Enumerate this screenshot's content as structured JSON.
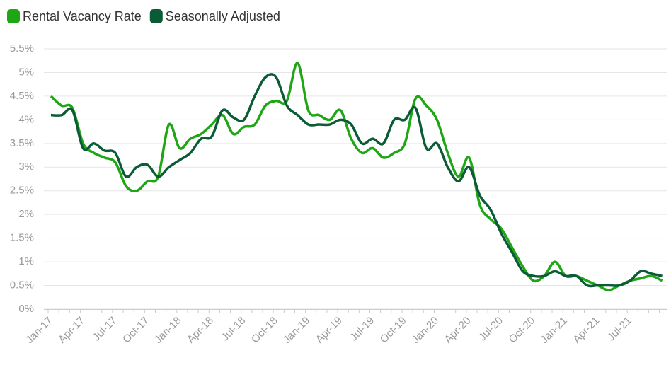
{
  "chart_data": {
    "type": "line",
    "categories": [
      "Jan-17",
      null,
      null,
      "Apr-17",
      null,
      null,
      "Jul-17",
      null,
      null,
      "Oct-17",
      null,
      null,
      "Jan-18",
      null,
      null,
      "Apr-18",
      null,
      null,
      "Jul-18",
      null,
      null,
      "Oct-18",
      null,
      null,
      "Jan-19",
      null,
      null,
      "Apr-19",
      null,
      null,
      "Jul-19",
      null,
      null,
      "Oct-19",
      null,
      null,
      "Jan-20",
      null,
      null,
      "Apr-20",
      null,
      null,
      "Jul-20",
      null,
      null,
      "Oct-20",
      null,
      null,
      "Jan-21",
      null,
      null,
      "Apr-21",
      null,
      null,
      "Jul-21",
      null,
      null,
      null
    ],
    "series": [
      {
        "name": "Rental Vacancy Rate",
        "color": "#1ea614",
        "values": [
          4.5,
          4.3,
          4.25,
          3.5,
          3.3,
          3.2,
          3.1,
          2.6,
          2.5,
          2.7,
          2.8,
          3.9,
          3.4,
          3.6,
          3.7,
          3.9,
          4.1,
          3.7,
          3.85,
          3.9,
          4.3,
          4.4,
          4.4,
          5.2,
          4.2,
          4.1,
          4.0,
          4.2,
          3.6,
          3.3,
          3.4,
          3.2,
          3.3,
          3.5,
          4.45,
          4.3,
          4.0,
          3.3,
          2.8,
          3.2,
          2.2,
          1.9,
          1.7,
          1.3,
          0.9,
          0.6,
          0.7,
          1.0,
          0.7,
          0.7,
          0.6,
          0.5,
          0.4,
          0.5,
          0.6,
          0.65,
          0.7,
          0.6
        ]
      },
      {
        "name": "Seasonally Adjusted",
        "color": "#0b5b37",
        "values": [
          4.1,
          4.1,
          4.2,
          3.4,
          3.5,
          3.35,
          3.3,
          2.8,
          3.0,
          3.05,
          2.8,
          3.0,
          3.15,
          3.3,
          3.6,
          3.65,
          4.2,
          4.05,
          4.0,
          4.5,
          4.9,
          4.9,
          4.3,
          4.1,
          3.9,
          3.9,
          3.9,
          4.0,
          3.9,
          3.5,
          3.6,
          3.5,
          4.0,
          4.0,
          4.25,
          3.4,
          3.5,
          3.0,
          2.7,
          3.0,
          2.4,
          2.1,
          1.6,
          1.2,
          0.8,
          0.7,
          0.7,
          0.8,
          0.7,
          0.7,
          0.5,
          0.5,
          0.5,
          0.5,
          0.6,
          0.8,
          0.75,
          0.7
        ]
      }
    ],
    "ylim": [
      0,
      5.5
    ],
    "yticks": [
      {
        "value": 0,
        "label": "0%"
      },
      {
        "value": 0.5,
        "label": "0.5%"
      },
      {
        "value": 1,
        "label": "1%"
      },
      {
        "value": 1.5,
        "label": "1.5%"
      },
      {
        "value": 2,
        "label": "2%"
      },
      {
        "value": 2.5,
        "label": "2.5%"
      },
      {
        "value": 3,
        "label": "3%"
      },
      {
        "value": 3.5,
        "label": "3.5%"
      },
      {
        "value": 4,
        "label": "4%"
      },
      {
        "value": 4.5,
        "label": "4.5%"
      },
      {
        "value": 5,
        "label": "5%"
      },
      {
        "value": 5.5,
        "label": "5.5%"
      }
    ],
    "grid": true,
    "legend": "top-left"
  }
}
